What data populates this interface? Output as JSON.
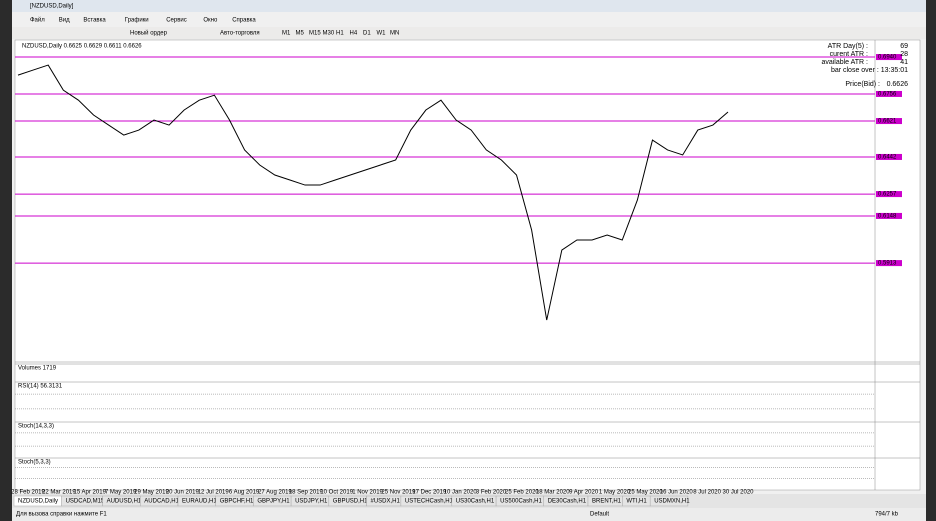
{
  "window": {
    "title": "[NZDUSD,Daily]"
  },
  "menu": [
    "Файл",
    "Вид",
    "Вставка",
    "Графики",
    "Сервис",
    "Окно",
    "Справка"
  ],
  "toolbar": {
    "buttons": [
      "Новый ордер",
      "Авто-торговля"
    ],
    "timeframes": [
      "M1",
      "M5",
      "M15",
      "M30",
      "H1",
      "H4",
      "D1",
      "W1",
      "MN"
    ]
  },
  "chart": {
    "type": "line",
    "header": "NZDUSD,Daily 0.6625 0.6629 0.6611 0.6626",
    "info": [
      "ATR Day(5) :",
      "69",
      "curent ATR :",
      "28",
      "available ATR :",
      "41",
      "bar close over : 13:35:01",
      "Price(Bid) :",
      "0.6626"
    ],
    "ylim": [
      0.542,
      0.7015
    ],
    "levels": [
      {
        "value": 0.694,
        "label": "0.6940"
      },
      {
        "value": 0.6756,
        "label": "0.6756"
      },
      {
        "value": 0.6621,
        "label": "0.6621"
      },
      {
        "value": 0.6442,
        "label": "0.6442"
      },
      {
        "value": 0.6257,
        "label": "0.6257"
      },
      {
        "value": 0.6148,
        "label": "0.6148"
      },
      {
        "value": 0.5913,
        "label": "0.5913"
      }
    ],
    "values": [
      0.685,
      0.6875,
      0.69,
      0.6775,
      0.6725,
      0.6651,
      0.6601,
      0.6551,
      0.6576,
      0.6626,
      0.6601,
      0.6676,
      0.6725,
      0.675,
      0.6626,
      0.6477,
      0.6402,
      0.6352,
      0.6327,
      0.6302,
      0.6302,
      0.6327,
      0.6352,
      0.6377,
      0.6402,
      0.6427,
      0.6576,
      0.6676,
      0.6725,
      0.6626,
      0.6576,
      0.6477,
      0.6427,
      0.6352,
      0.6078,
      0.5629,
      0.5978,
      0.6028,
      0.6028,
      0.6053,
      0.6028,
      0.6227,
      0.6526,
      0.6477,
      0.6452,
      0.6576,
      0.6601,
      0.6666
    ],
    "dates": [
      "28 Feb 2019",
      "22 Mar 2019",
      "15 Apr 2019",
      "7 May 2019",
      "29 May 2019",
      "20 Jun 2019",
      "12 Jul 2019",
      "6 Aug 2019",
      "27 Aug 2019",
      "18 Sep 2019",
      "10 Oct 2019",
      "1 Nov 2019",
      "25 Nov 2019",
      "17 Dec 2019",
      "10 Jan 2020",
      "3 Feb 2020",
      "25 Feb 2020",
      "18 Mar 2020",
      "9 Apr 2020",
      "1 May 2020",
      "25 May 2020",
      "16 Jun 2020",
      "8 Jul 2020",
      "30 Jul 2020"
    ],
    "panes": [
      "Volumes 1719",
      "RSI(14) 56.3131",
      "Stoch(14,3,3)",
      "Stoch(5,3,3)"
    ]
  },
  "tabs": [
    "NZDUSD,Daily",
    "USDCAD,M15",
    "AUDUSD,H1",
    "AUDCAD,H1",
    "EURAUD,H1",
    "GBPCHF,H1",
    "GBPJPY,H1",
    "USDJPY,H1",
    "GBPUSD,H1",
    "#USDX,H1",
    "USTECHCash,H1",
    "US30Cash,H1",
    "US500Cash,H1",
    "DE30Cash,H1",
    "BRENT,H1",
    "WTI,H1",
    "USDMXN,H1"
  ],
  "status": [
    "Для вызова справки нажмите F1",
    "Default",
    "794/7 kb"
  ]
}
